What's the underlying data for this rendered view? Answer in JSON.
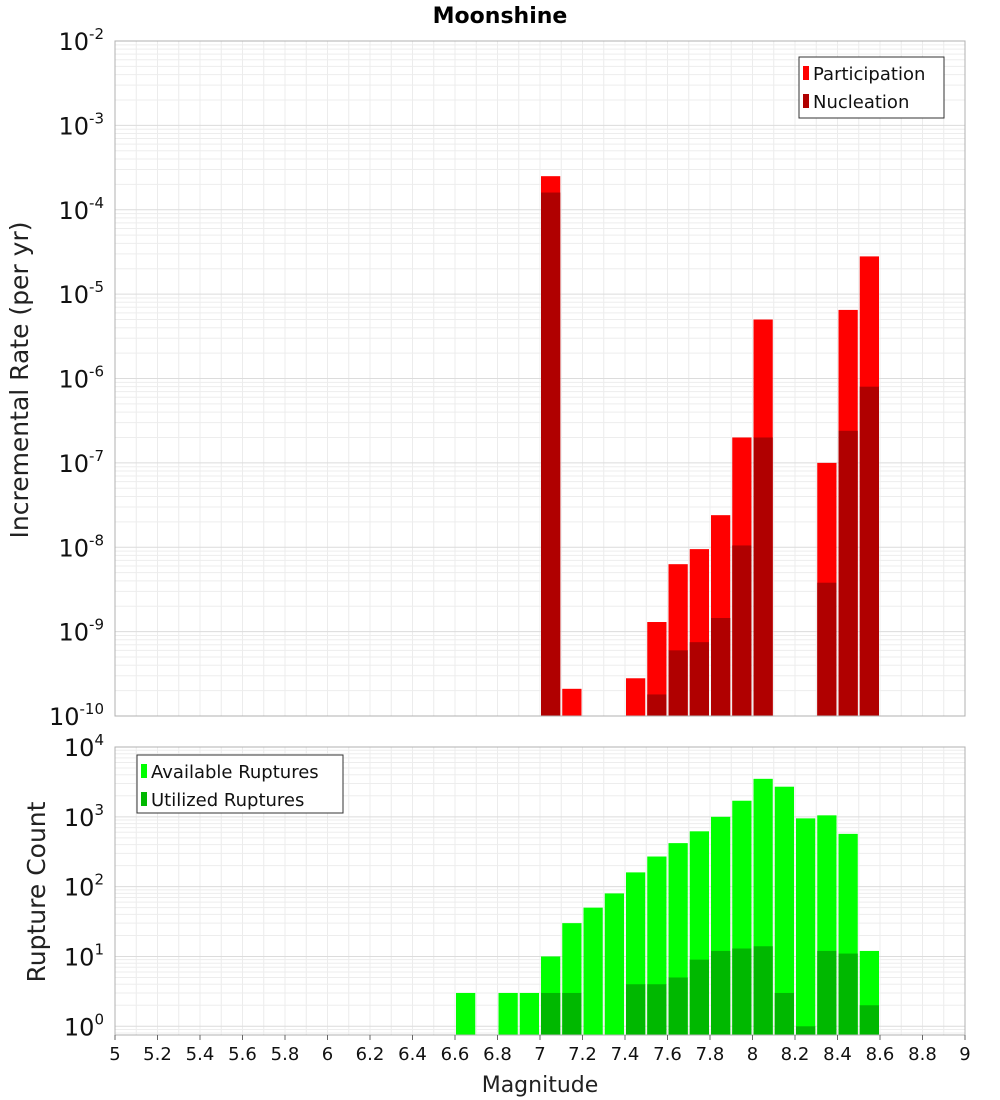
{
  "chart_data": [
    {
      "type": "bar",
      "title": "Moonshine",
      "ylabel": "Incremental Rate (per yr)",
      "xlabel": "",
      "xlim": [
        5,
        9
      ],
      "ylim": [
        1e-10,
        0.01
      ],
      "y_scale": "log",
      "y_tick_exponents": [
        "-2",
        "-3",
        "-4",
        "-5",
        "-6",
        "-7",
        "-8",
        "-9",
        "-10"
      ],
      "bin_width": 0.1,
      "grid": true,
      "legend_position": "top-right",
      "x": [
        7.05,
        7.15,
        7.45,
        7.55,
        7.65,
        7.75,
        7.85,
        7.95,
        8.05,
        8.35,
        8.45,
        8.55
      ],
      "series": [
        {
          "name": "Participation",
          "color": "#ff0000",
          "values": [
            0.00025,
            2.1e-10,
            2.8e-10,
            1.3e-09,
            6.3e-09,
            9.5e-09,
            2.4e-08,
            2e-07,
            5e-06,
            1e-07,
            6.5e-06,
            2.8e-05
          ]
        },
        {
          "name": "Nucleation",
          "color": "#b00000",
          "values": [
            0.00016,
            null,
            null,
            1.8e-10,
            6e-10,
            7.5e-10,
            1.45e-09,
            1.05e-08,
            2e-07,
            3.8e-09,
            2.4e-07,
            8e-07
          ]
        }
      ]
    },
    {
      "type": "bar",
      "title": "",
      "ylabel": "Rupture Count",
      "xlabel": "Magnitude",
      "xlim": [
        5,
        9
      ],
      "ylim": [
        0.75,
        10000.0
      ],
      "y_scale": "log",
      "y_tick_exponents": [
        "4",
        "3",
        "2",
        "1",
        "0"
      ],
      "x_ticks": [
        "5",
        "5.2",
        "5.4",
        "5.6",
        "5.8",
        "6",
        "6.2",
        "6.4",
        "6.6",
        "6.8",
        "7",
        "7.2",
        "7.4",
        "7.6",
        "7.8",
        "8",
        "8.2",
        "8.4",
        "8.6",
        "8.8",
        "9"
      ],
      "bin_width": 0.1,
      "grid": true,
      "legend_position": "top-left",
      "x": [
        6.65,
        6.85,
        6.95,
        7.05,
        7.15,
        7.25,
        7.35,
        7.45,
        7.55,
        7.65,
        7.75,
        7.85,
        7.95,
        8.05,
        8.15,
        8.25,
        8.35,
        8.45,
        8.55
      ],
      "series": [
        {
          "name": "Available Ruptures",
          "color": "#00ff00",
          "values": [
            3,
            3,
            3,
            10,
            30,
            50,
            80,
            160,
            270,
            420,
            620,
            1000,
            1700,
            3500,
            2700,
            950,
            1050,
            570,
            12
          ]
        },
        {
          "name": "Utilized Ruptures",
          "color": "#00b800",
          "values": [
            null,
            null,
            null,
            3,
            3,
            null,
            null,
            4,
            4,
            5,
            9,
            12,
            13,
            14,
            3,
            1,
            12,
            11,
            2
          ]
        }
      ]
    }
  ]
}
